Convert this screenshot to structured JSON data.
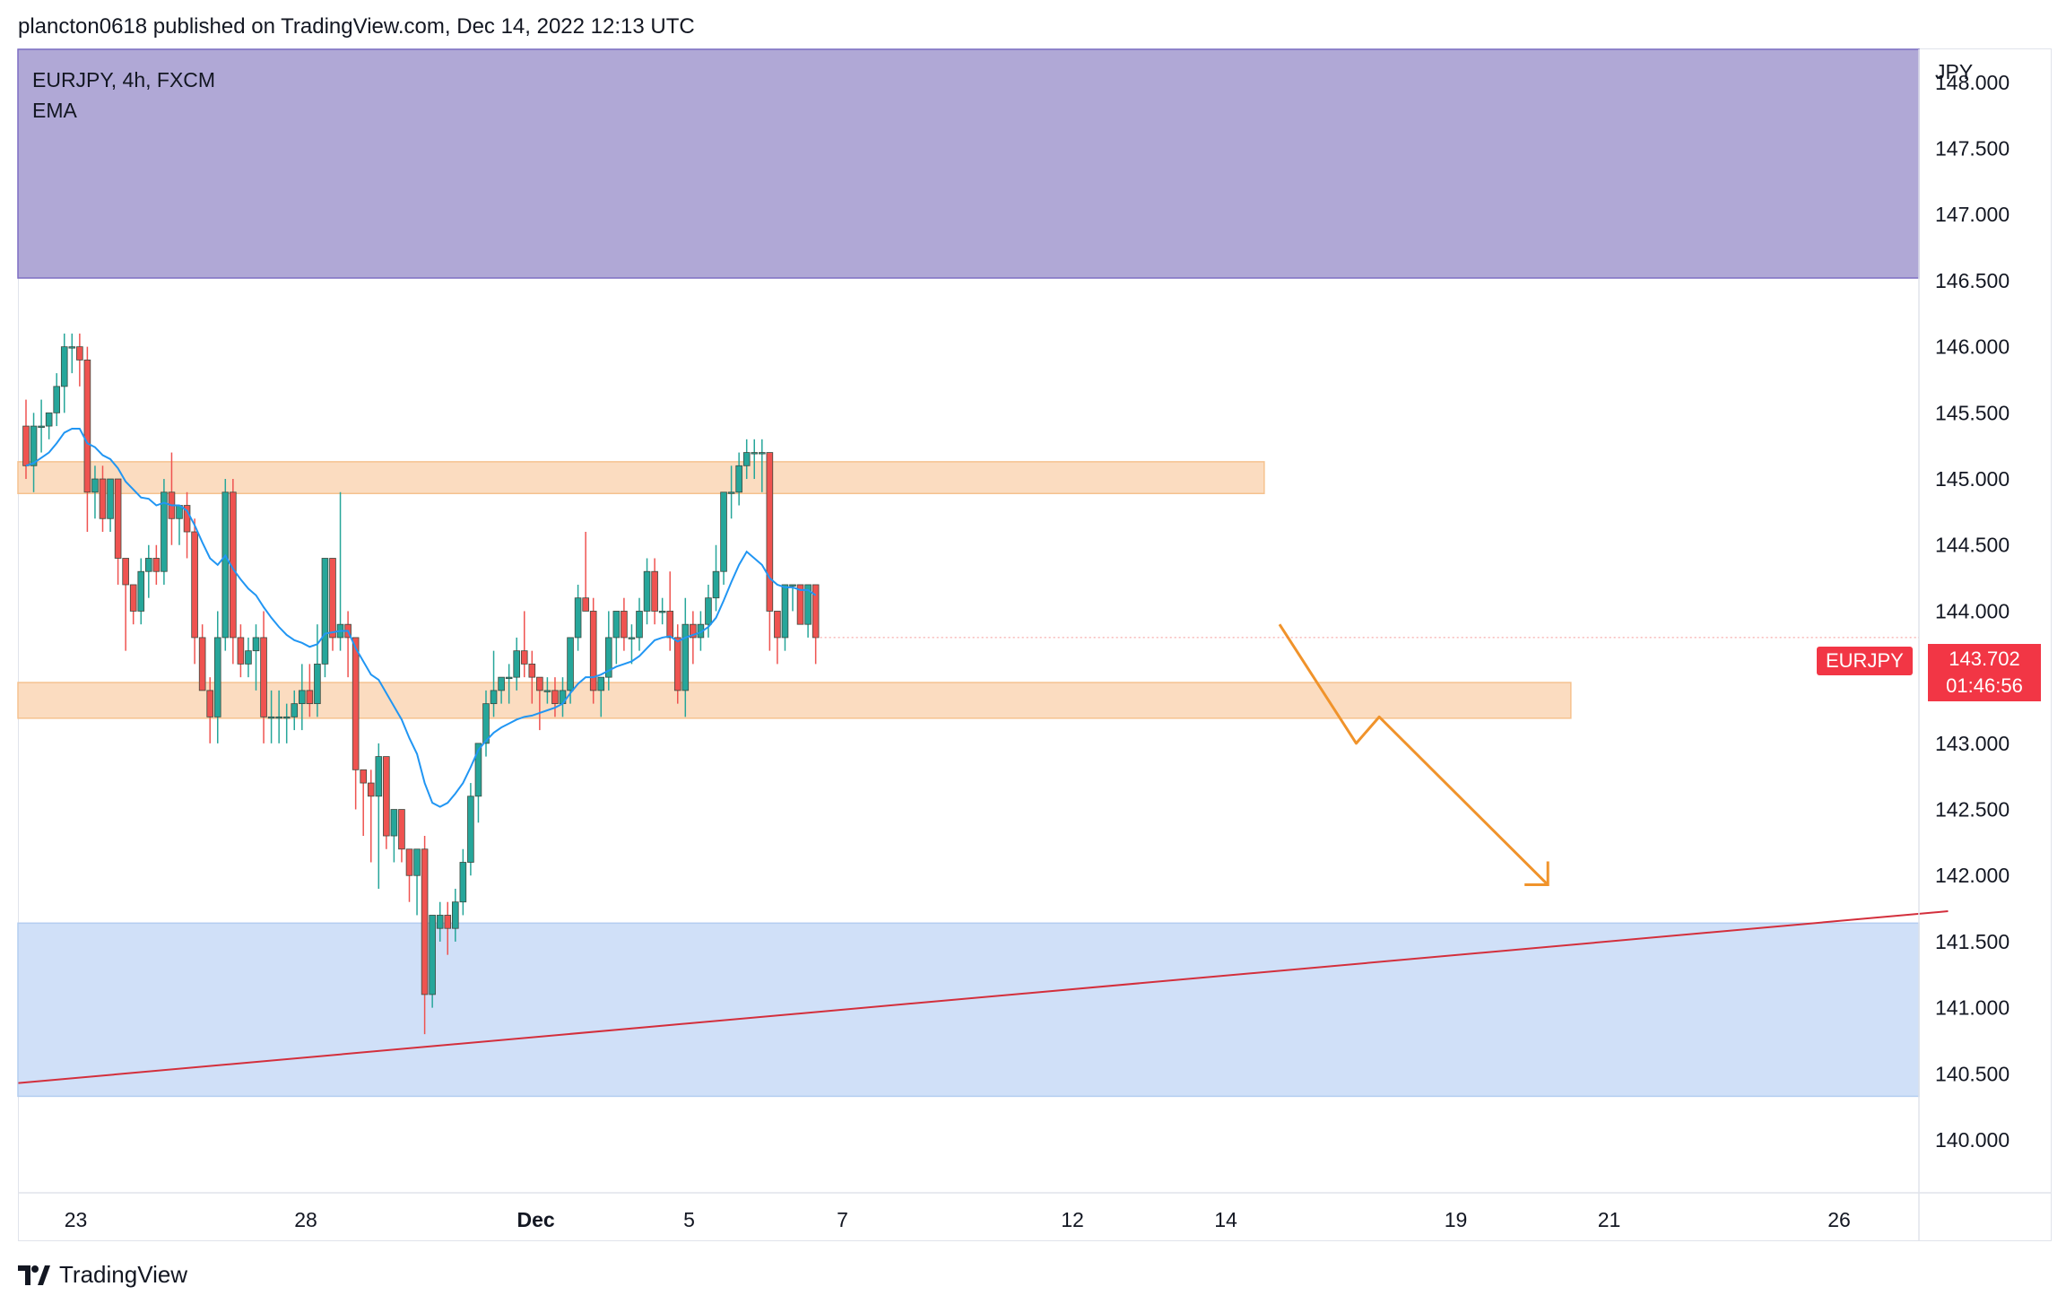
{
  "header": {
    "published": "plancton0618 published on TradingView.com, Dec 14, 2022 12:13 UTC"
  },
  "symbol": {
    "line1": "EURJPY, 4h, FXCM",
    "line2": "EMA"
  },
  "footer": {
    "brand": "TradingView"
  },
  "price_tag": {
    "symbol": "EURJPY",
    "price": "143.702",
    "countdown": "01:46:56"
  },
  "colors": {
    "up": "#26a69a",
    "down": "#ef5350",
    "ema": "#2196f3",
    "supply_zone": "#b0a8d6",
    "demand_zone": "#d0e0f8",
    "orange_zone": "#fbdcc0",
    "trendline": "#d32f3c",
    "arrow": "#f0932b"
  },
  "chart_data": {
    "type": "candlestick",
    "y_axis_title": "JPY",
    "ylim": [
      139.6,
      148.25
    ],
    "y_ticks": [
      148.0,
      147.5,
      147.0,
      146.5,
      146.0,
      145.5,
      145.0,
      144.5,
      144.0,
      143.5,
      143.0,
      142.5,
      142.0,
      141.5,
      141.0,
      140.5,
      140.0
    ],
    "y_tick_labels": [
      "148.000",
      "147.500",
      "147.000",
      "146.500",
      "146.000",
      "145.500",
      "145.000",
      "144.500",
      "144.000",
      "143.500",
      "143.000",
      "142.500",
      "142.000",
      "141.500",
      "141.000",
      "140.500",
      "140.000"
    ],
    "x_ticks": [
      {
        "label": "23",
        "bar": 6.5
      },
      {
        "label": "28",
        "bar": 36.5
      },
      {
        "label": "Dec",
        "bar": 66.5
      },
      {
        "label": "5",
        "bar": 86.5
      },
      {
        "label": "7",
        "bar": 106.5
      },
      {
        "label": "12",
        "bar": 136.5
      },
      {
        "label": "14",
        "bar": 156.5
      },
      {
        "label": "19",
        "bar": 186.5
      },
      {
        "label": "21",
        "bar": 206.5
      },
      {
        "label": "26",
        "bar": 236.5
      }
    ],
    "candles": [
      [
        145.4,
        145.6,
        145.0,
        145.1
      ],
      [
        145.1,
        145.5,
        144.9,
        145.4
      ],
      [
        145.4,
        145.6,
        145.2,
        145.4
      ],
      [
        145.4,
        145.5,
        145.3,
        145.5
      ],
      [
        145.5,
        145.8,
        145.4,
        145.7
      ],
      [
        145.7,
        146.1,
        145.5,
        146.0
      ],
      [
        146.0,
        146.1,
        145.8,
        146.0
      ],
      [
        146.0,
        146.1,
        145.7,
        145.9
      ],
      [
        145.9,
        146.0,
        144.6,
        144.9
      ],
      [
        144.9,
        145.1,
        144.7,
        145.0
      ],
      [
        145.0,
        145.1,
        144.6,
        144.7
      ],
      [
        144.7,
        145.0,
        144.6,
        145.0
      ],
      [
        145.0,
        145.0,
        144.2,
        144.4
      ],
      [
        144.4,
        144.4,
        143.7,
        144.2
      ],
      [
        144.2,
        144.2,
        143.9,
        144.0
      ],
      [
        144.0,
        144.4,
        143.9,
        144.3
      ],
      [
        144.3,
        144.5,
        144.1,
        144.4
      ],
      [
        144.4,
        144.5,
        144.2,
        144.3
      ],
      [
        144.3,
        145.0,
        144.2,
        144.9
      ],
      [
        144.9,
        145.2,
        144.5,
        144.7
      ],
      [
        144.7,
        144.8,
        144.5,
        144.8
      ],
      [
        144.8,
        144.9,
        144.4,
        144.6
      ],
      [
        144.6,
        144.7,
        143.6,
        143.8
      ],
      [
        143.8,
        143.9,
        143.4,
        143.4
      ],
      [
        143.4,
        143.5,
        143.0,
        143.2
      ],
      [
        143.2,
        144.0,
        143.0,
        143.8
      ],
      [
        143.8,
        145.0,
        143.7,
        144.9
      ],
      [
        144.9,
        145.0,
        143.6,
        143.8
      ],
      [
        143.8,
        143.9,
        143.5,
        143.6
      ],
      [
        143.6,
        143.8,
        143.5,
        143.7
      ],
      [
        143.7,
        143.9,
        143.4,
        143.8
      ],
      [
        143.8,
        144.0,
        143.0,
        143.2
      ],
      [
        143.2,
        143.4,
        143.0,
        143.2
      ],
      [
        143.2,
        143.4,
        143.0,
        143.2
      ],
      [
        143.2,
        143.3,
        143.0,
        143.2
      ],
      [
        143.2,
        143.4,
        143.1,
        143.3
      ],
      [
        143.3,
        143.6,
        143.1,
        143.4
      ],
      [
        143.4,
        143.6,
        143.2,
        143.3
      ],
      [
        143.3,
        143.9,
        143.2,
        143.6
      ],
      [
        143.6,
        144.4,
        143.5,
        144.4
      ],
      [
        144.4,
        144.4,
        143.7,
        143.8
      ],
      [
        143.8,
        144.9,
        143.7,
        143.9
      ],
      [
        143.9,
        144.0,
        143.5,
        143.8
      ],
      [
        143.8,
        143.8,
        142.5,
        142.8
      ],
      [
        142.8,
        142.8,
        142.3,
        142.7
      ],
      [
        142.7,
        142.8,
        142.1,
        142.6
      ],
      [
        142.6,
        143.0,
        141.9,
        142.9
      ],
      [
        142.9,
        142.9,
        142.2,
        142.3
      ],
      [
        142.3,
        142.5,
        142.1,
        142.5
      ],
      [
        142.5,
        142.5,
        142.1,
        142.2
      ],
      [
        142.2,
        142.2,
        141.8,
        142.0
      ],
      [
        142.0,
        142.2,
        141.7,
        142.2
      ],
      [
        142.2,
        142.3,
        140.8,
        141.1
      ],
      [
        141.1,
        141.7,
        141.0,
        141.7
      ],
      [
        141.6,
        141.8,
        141.5,
        141.7
      ],
      [
        141.7,
        141.8,
        141.4,
        141.6
      ],
      [
        141.6,
        141.9,
        141.5,
        141.8
      ],
      [
        141.8,
        142.2,
        141.7,
        142.1
      ],
      [
        142.1,
        142.7,
        142.0,
        142.6
      ],
      [
        142.6,
        143.0,
        142.4,
        143.0
      ],
      [
        143.0,
        143.4,
        142.9,
        143.3
      ],
      [
        143.3,
        143.7,
        143.2,
        143.4
      ],
      [
        143.4,
        143.5,
        143.3,
        143.5
      ],
      [
        143.5,
        143.6,
        143.3,
        143.5
      ],
      [
        143.5,
        143.8,
        143.4,
        143.7
      ],
      [
        143.7,
        144.0,
        143.5,
        143.6
      ],
      [
        143.6,
        143.7,
        143.3,
        143.5
      ],
      [
        143.5,
        143.5,
        143.1,
        143.4
      ],
      [
        143.4,
        143.5,
        143.3,
        143.4
      ],
      [
        143.4,
        143.5,
        143.2,
        143.3
      ],
      [
        143.3,
        143.5,
        143.2,
        143.4
      ],
      [
        143.4,
        143.8,
        143.3,
        143.8
      ],
      [
        143.8,
        144.2,
        143.7,
        144.1
      ],
      [
        144.1,
        144.6,
        144.0,
        144.0
      ],
      [
        144.0,
        144.1,
        143.3,
        143.4
      ],
      [
        143.4,
        143.5,
        143.2,
        143.5
      ],
      [
        143.5,
        144.0,
        143.4,
        143.8
      ],
      [
        143.8,
        144.0,
        143.6,
        144.0
      ],
      [
        144.0,
        144.1,
        143.7,
        143.8
      ],
      [
        143.8,
        143.9,
        143.6,
        143.8
      ],
      [
        143.8,
        144.1,
        143.7,
        144.0
      ],
      [
        144.0,
        144.4,
        143.9,
        144.3
      ],
      [
        144.3,
        144.4,
        143.9,
        144.0
      ],
      [
        144.0,
        144.1,
        143.9,
        144.0
      ],
      [
        144.0,
        144.3,
        143.7,
        143.8
      ],
      [
        143.8,
        143.9,
        143.3,
        143.4
      ],
      [
        143.4,
        144.1,
        143.2,
        143.9
      ],
      [
        143.9,
        144.0,
        143.6,
        143.8
      ],
      [
        143.8,
        144.0,
        143.7,
        143.9
      ],
      [
        143.9,
        144.2,
        143.8,
        144.1
      ],
      [
        144.1,
        144.5,
        144.0,
        144.3
      ],
      [
        144.3,
        144.9,
        144.2,
        144.9
      ],
      [
        144.9,
        145.1,
        144.7,
        144.9
      ],
      [
        144.9,
        145.2,
        144.8,
        145.1
      ],
      [
        145.1,
        145.3,
        145.0,
        145.2
      ],
      [
        145.2,
        145.3,
        145.0,
        145.2
      ],
      [
        145.2,
        145.3,
        144.9,
        145.2
      ],
      [
        145.2,
        145.2,
        143.7,
        144.0
      ],
      [
        144.0,
        144.0,
        143.6,
        143.8
      ],
      [
        143.8,
        144.2,
        143.7,
        144.2
      ],
      [
        144.2,
        144.2,
        144.0,
        144.2
      ],
      [
        144.2,
        144.2,
        143.9,
        143.9
      ],
      [
        143.9,
        144.2,
        143.8,
        144.2
      ],
      [
        144.2,
        144.2,
        143.6,
        143.8
      ]
    ],
    "ema": [
      145.1,
      145.12,
      145.16,
      145.2,
      145.27,
      145.35,
      145.38,
      145.38,
      145.27,
      145.24,
      145.18,
      145.15,
      145.08,
      144.98,
      144.92,
      144.86,
      144.85,
      144.8,
      144.82,
      144.8,
      144.8,
      144.76,
      144.65,
      144.52,
      144.4,
      144.35,
      144.42,
      144.32,
      144.24,
      144.17,
      144.12,
      144.03,
      143.95,
      143.88,
      143.82,
      143.78,
      143.76,
      143.73,
      143.75,
      143.83,
      143.84,
      143.85,
      143.85,
      143.72,
      143.62,
      143.52,
      143.48,
      143.38,
      143.28,
      143.18,
      143.04,
      142.92,
      142.7,
      142.55,
      142.52,
      142.55,
      142.62,
      142.7,
      142.82,
      142.95,
      143.02,
      143.08,
      143.12,
      143.15,
      143.18,
      143.2,
      143.21,
      143.23,
      143.25,
      143.27,
      143.3,
      143.38,
      143.45,
      143.5,
      143.5,
      143.52,
      143.55,
      143.58,
      143.6,
      143.62,
      143.66,
      143.72,
      143.78,
      143.8,
      143.81,
      143.77,
      143.8,
      143.82,
      143.84,
      143.88,
      143.95,
      144.08,
      144.22,
      144.35,
      144.45,
      144.4,
      144.35,
      144.25,
      144.2,
      144.18,
      144.18,
      144.16,
      144.16,
      144.12
    ],
    "zones": [
      {
        "type": "supply",
        "y_top": 148.25,
        "y_bottom": 146.52,
        "x_end_bar": null
      },
      {
        "type": "resistance",
        "y_top": 145.13,
        "y_bottom": 144.89,
        "x_end_bar": 161.5
      },
      {
        "type": "support",
        "y_top": 143.46,
        "y_bottom": 143.19,
        "x_end_bar": 201.5
      },
      {
        "type": "demand",
        "y_top": 141.64,
        "y_bottom": 140.33,
        "x_end_bar": null
      }
    ],
    "trendline": {
      "start": [
        -1,
        140.43
      ],
      "end": [
        250.7,
        141.73
      ]
    },
    "projection": [
      [
        163.5,
        143.9
      ],
      [
        173.5,
        143.0
      ],
      [
        176.5,
        143.2
      ],
      [
        198.5,
        141.93
      ]
    ]
  }
}
